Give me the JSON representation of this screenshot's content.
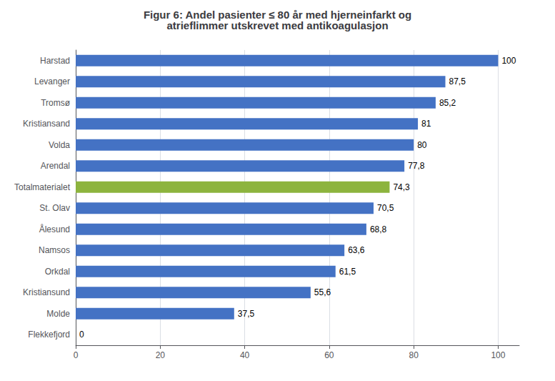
{
  "chart_data": {
    "type": "bar",
    "orientation": "horizontal",
    "title": "Figur 6: Andel pasienter ≤ 80 år med hjerneinfarkt og\natrieflimmer utskrevet med antikoagulasjon",
    "categories": [
      "Harstad",
      "Levanger",
      "Tromsø",
      "Kristiansand",
      "Volda",
      "Arendal",
      "Totalmaterialet",
      "St. Olav",
      "Ålesund",
      "Namsos",
      "Orkdal",
      "Kristiansund",
      "Molde",
      "Flekkefjord"
    ],
    "values": [
      100,
      87.5,
      85.2,
      81,
      80,
      77.8,
      74.3,
      70.5,
      68.8,
      63.6,
      61.5,
      55.6,
      37.5,
      0
    ],
    "value_labels": [
      "100",
      "87,5",
      "85,2",
      "81",
      "80",
      "77,8",
      "74,3",
      "70,5",
      "68,8",
      "63,6",
      "61,5",
      "55,6",
      "37,5",
      "0"
    ],
    "colors": [
      "#4472C4",
      "#4472C4",
      "#4472C4",
      "#4472C4",
      "#4472C4",
      "#4472C4",
      "#8DB43E",
      "#4472C4",
      "#4472C4",
      "#4472C4",
      "#4472C4",
      "#4472C4",
      "#4472C4",
      "#4472C4"
    ],
    "xlim": [
      0,
      105
    ],
    "xticks": [
      0,
      20,
      40,
      60,
      80,
      100
    ],
    "grid": true,
    "data_labels": true
  }
}
